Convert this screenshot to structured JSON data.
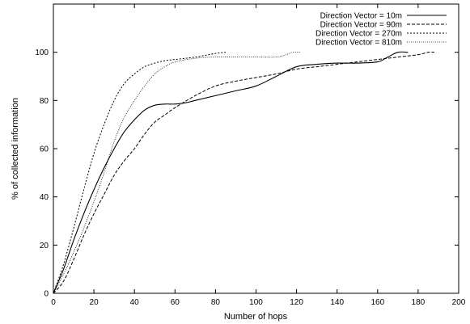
{
  "chart_data": {
    "type": "line",
    "title": "",
    "xlabel": "Number of hops",
    "ylabel": "% of collected information",
    "xlim": [
      0,
      200
    ],
    "ylim": [
      0,
      120
    ],
    "xticks": [
      0,
      20,
      40,
      60,
      80,
      100,
      120,
      140,
      160,
      180,
      200
    ],
    "yticks": [
      0,
      20,
      40,
      60,
      80,
      100
    ],
    "grid": false,
    "legend_position": "top-right",
    "series": [
      {
        "name": "Direction Vector = 10m",
        "dash": "solid",
        "points": [
          [
            0,
            0
          ],
          [
            5,
            10
          ],
          [
            10,
            22
          ],
          [
            15,
            33
          ],
          [
            20,
            43
          ],
          [
            25,
            52
          ],
          [
            30,
            60
          ],
          [
            35,
            67
          ],
          [
            40,
            72
          ],
          [
            45,
            76
          ],
          [
            50,
            78
          ],
          [
            55,
            78.5
          ],
          [
            60,
            78.5
          ],
          [
            65,
            79
          ],
          [
            70,
            80
          ],
          [
            80,
            82
          ],
          [
            90,
            84
          ],
          [
            100,
            86
          ],
          [
            110,
            90
          ],
          [
            120,
            94
          ],
          [
            130,
            95
          ],
          [
            140,
            95.5
          ],
          [
            150,
            95.5
          ],
          [
            160,
            96
          ],
          [
            165,
            98
          ],
          [
            170,
            100
          ],
          [
            175,
            100
          ]
        ]
      },
      {
        "name": "Direction Vector = 90m",
        "dash": "dashed",
        "points": [
          [
            0,
            0
          ],
          [
            5,
            5
          ],
          [
            10,
            14
          ],
          [
            15,
            24
          ],
          [
            20,
            33
          ],
          [
            25,
            41
          ],
          [
            30,
            49
          ],
          [
            35,
            55
          ],
          [
            40,
            60
          ],
          [
            45,
            66
          ],
          [
            50,
            71
          ],
          [
            55,
            74
          ],
          [
            60,
            77
          ],
          [
            70,
            82
          ],
          [
            80,
            86
          ],
          [
            90,
            88
          ],
          [
            100,
            89.5
          ],
          [
            110,
            91
          ],
          [
            120,
            93
          ],
          [
            130,
            94
          ],
          [
            140,
            95
          ],
          [
            150,
            96
          ],
          [
            160,
            97
          ],
          [
            170,
            98
          ],
          [
            180,
            99
          ],
          [
            185,
            100
          ],
          [
            188,
            100
          ]
        ]
      },
      {
        "name": "Direction Vector = 270m",
        "dash": "dotted",
        "points": [
          [
            0,
            0
          ],
          [
            5,
            12
          ],
          [
            10,
            27
          ],
          [
            15,
            43
          ],
          [
            20,
            58
          ],
          [
            25,
            70
          ],
          [
            30,
            80
          ],
          [
            35,
            87
          ],
          [
            40,
            91
          ],
          [
            45,
            94
          ],
          [
            50,
            95.5
          ],
          [
            55,
            96.5
          ],
          [
            60,
            97
          ],
          [
            70,
            98
          ],
          [
            80,
            99.5
          ],
          [
            85,
            100
          ]
        ]
      },
      {
        "name": "Direction Vector = 810m",
        "dash": "fine-dotted",
        "points": [
          [
            0,
            0
          ],
          [
            5,
            8
          ],
          [
            10,
            17
          ],
          [
            15,
            27
          ],
          [
            20,
            38
          ],
          [
            25,
            50
          ],
          [
            30,
            63
          ],
          [
            35,
            73
          ],
          [
            40,
            80
          ],
          [
            45,
            86
          ],
          [
            50,
            91
          ],
          [
            55,
            94
          ],
          [
            60,
            96
          ],
          [
            70,
            97.5
          ],
          [
            80,
            98
          ],
          [
            90,
            98
          ],
          [
            100,
            98
          ],
          [
            110,
            98
          ],
          [
            115,
            99
          ],
          [
            118,
            100
          ],
          [
            122,
            100
          ]
        ]
      }
    ]
  }
}
